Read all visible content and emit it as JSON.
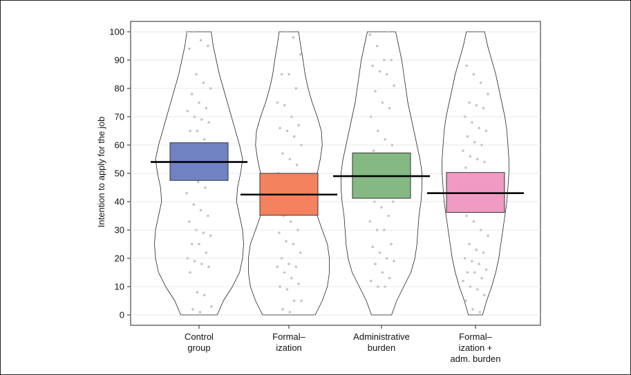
{
  "chart_data": {
    "type": "violin-box",
    "title": "",
    "xlabel": "",
    "ylabel": "Intention to apply for the job",
    "ylim": [
      0,
      100
    ],
    "yticks": [
      0,
      10,
      20,
      30,
      40,
      50,
      60,
      70,
      80,
      90,
      100
    ],
    "grid": true,
    "categories": [
      {
        "lines": [
          "Control",
          "group"
        ]
      },
      {
        "lines": [
          "Formal–",
          "ization"
        ]
      },
      {
        "lines": [
          "Administrative",
          "burden"
        ]
      },
      {
        "lines": [
          "Formal–",
          "ization +",
          "adm. burden"
        ]
      }
    ],
    "groups": [
      {
        "mean": 54,
        "box_low": 47.5,
        "box_high": 60.8,
        "color": "#7082c2",
        "density": [
          [
            0,
            0.09
          ],
          [
            5,
            0.12
          ],
          [
            10,
            0.165
          ],
          [
            15,
            0.2
          ],
          [
            20,
            0.215
          ],
          [
            25,
            0.22
          ],
          [
            30,
            0.215
          ],
          [
            35,
            0.2
          ],
          [
            40,
            0.185
          ],
          [
            45,
            0.19
          ],
          [
            50,
            0.205
          ],
          [
            55,
            0.215
          ],
          [
            60,
            0.2
          ],
          [
            65,
            0.18
          ],
          [
            70,
            0.16
          ],
          [
            75,
            0.14
          ],
          [
            80,
            0.12
          ],
          [
            85,
            0.1
          ],
          [
            90,
            0.085
          ],
          [
            95,
            0.07
          ],
          [
            100,
            0.06
          ]
        ],
        "points": [
          100,
          100,
          97,
          95,
          94,
          85,
          82,
          80,
          78,
          75,
          73,
          72,
          70,
          69,
          68,
          65,
          65,
          62,
          60,
          58,
          56,
          55,
          54,
          52,
          50,
          50,
          48,
          47,
          45,
          43,
          39,
          37,
          35,
          33,
          30,
          29,
          28,
          25,
          25,
          22,
          20,
          19,
          18,
          17,
          15,
          8,
          7,
          3,
          2,
          1
        ]
      },
      {
        "mean": 42.5,
        "box_low": 35.2,
        "box_high": 50,
        "color": "#f4825f",
        "density": [
          [
            0,
            0.13
          ],
          [
            5,
            0.165
          ],
          [
            10,
            0.19
          ],
          [
            15,
            0.2
          ],
          [
            20,
            0.2
          ],
          [
            25,
            0.19
          ],
          [
            30,
            0.165
          ],
          [
            35,
            0.14
          ],
          [
            40,
            0.13
          ],
          [
            45,
            0.13
          ],
          [
            50,
            0.14
          ],
          [
            55,
            0.155
          ],
          [
            60,
            0.165
          ],
          [
            65,
            0.16
          ],
          [
            70,
            0.14
          ],
          [
            75,
            0.115
          ],
          [
            80,
            0.095
          ],
          [
            85,
            0.08
          ],
          [
            90,
            0.07
          ],
          [
            95,
            0.058
          ],
          [
            100,
            0.048
          ]
        ],
        "points": [
          100,
          98,
          92,
          85,
          85,
          80,
          75,
          74,
          70,
          67,
          66,
          65,
          63,
          60,
          57,
          55,
          53,
          50,
          49,
          48,
          45,
          44,
          42,
          40,
          38,
          35,
          33,
          30,
          29,
          26,
          25,
          22,
          20,
          18,
          17,
          17,
          15,
          13,
          11,
          10,
          9,
          5,
          5,
          2,
          1
        ]
      },
      {
        "mean": 49,
        "box_low": 41.2,
        "box_high": 57.2,
        "color": "#85b983",
        "density": [
          [
            0,
            0.05
          ],
          [
            5,
            0.075
          ],
          [
            10,
            0.11
          ],
          [
            15,
            0.145
          ],
          [
            20,
            0.165
          ],
          [
            25,
            0.175
          ],
          [
            30,
            0.18
          ],
          [
            35,
            0.185
          ],
          [
            40,
            0.195
          ],
          [
            45,
            0.2
          ],
          [
            50,
            0.2
          ],
          [
            55,
            0.19
          ],
          [
            60,
            0.175
          ],
          [
            65,
            0.16
          ],
          [
            70,
            0.145
          ],
          [
            75,
            0.13
          ],
          [
            80,
            0.12
          ],
          [
            85,
            0.11
          ],
          [
            90,
            0.1
          ],
          [
            95,
            0.085
          ],
          [
            100,
            0.07
          ]
        ],
        "points": [
          100,
          99,
          95,
          90,
          90,
          88,
          86,
          85,
          81,
          79,
          75,
          73,
          70,
          65,
          62,
          60,
          58,
          55,
          53,
          50,
          49,
          48,
          47,
          45,
          43,
          42,
          40,
          40,
          38,
          35,
          33,
          30,
          30,
          25,
          24,
          22,
          20,
          19,
          18,
          15,
          13,
          12,
          10,
          10
        ]
      },
      {
        "mean": 43,
        "box_low": 36.2,
        "box_high": 50.3,
        "color": "#f09ac4",
        "density": [
          [
            0,
            0.035
          ],
          [
            5,
            0.055
          ],
          [
            10,
            0.08
          ],
          [
            15,
            0.1
          ],
          [
            20,
            0.115
          ],
          [
            25,
            0.125
          ],
          [
            30,
            0.135
          ],
          [
            35,
            0.145
          ],
          [
            40,
            0.155
          ],
          [
            45,
            0.16
          ],
          [
            50,
            0.165
          ],
          [
            55,
            0.165
          ],
          [
            60,
            0.16
          ],
          [
            65,
            0.155
          ],
          [
            70,
            0.145
          ],
          [
            75,
            0.13
          ],
          [
            80,
            0.115
          ],
          [
            85,
            0.1
          ],
          [
            90,
            0.08
          ],
          [
            95,
            0.06
          ],
          [
            100,
            0.045
          ]
        ],
        "points": [
          88,
          85,
          82,
          78,
          75,
          74,
          73,
          70,
          68,
          66,
          65,
          63,
          61,
          60,
          58,
          56,
          55,
          54,
          52,
          50,
          48,
          47,
          45,
          44,
          42,
          40,
          39,
          38,
          37,
          35,
          33,
          30,
          28,
          25,
          23,
          22,
          20,
          19,
          18,
          16,
          15,
          15,
          13,
          12,
          10,
          9,
          7,
          5,
          2,
          1
        ]
      }
    ]
  }
}
